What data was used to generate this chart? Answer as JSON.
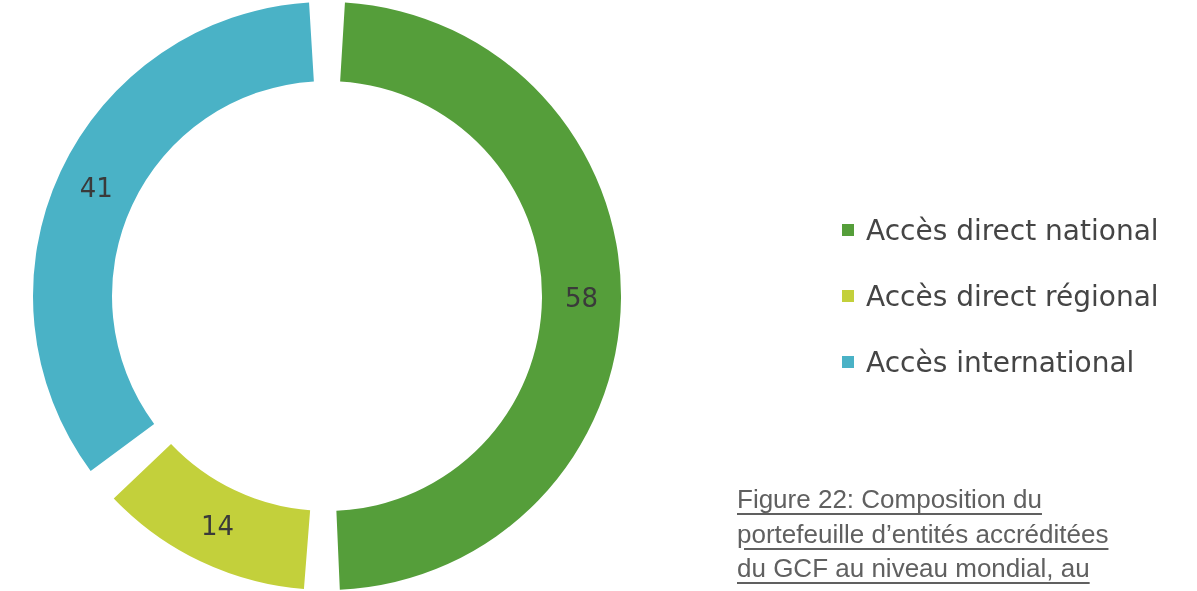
{
  "chart_data": {
    "type": "donut",
    "categories": [
      "Accès direct national",
      "Accès direct régional",
      "Accès international"
    ],
    "values": [
      58,
      14,
      41
    ],
    "colors": [
      "#559e3a",
      "#c3d03b",
      "#4ab2c6"
    ],
    "data_labels": true,
    "legend": "right",
    "annotations": [
      "Figure 22: Composition du portefeuille d’entités accréditées du GCF au niveau mondial, au"
    ]
  }
}
